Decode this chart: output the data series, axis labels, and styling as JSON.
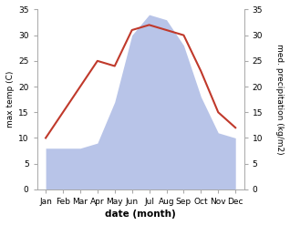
{
  "months": [
    "Jan",
    "Feb",
    "Mar",
    "Apr",
    "May",
    "Jun",
    "Jul",
    "Aug",
    "Sep",
    "Oct",
    "Nov",
    "Dec"
  ],
  "temperature": [
    10,
    15,
    20,
    25,
    24,
    31,
    32,
    31,
    30,
    23,
    15,
    12
  ],
  "precipitation": [
    8,
    8,
    8,
    9,
    17,
    30,
    34,
    33,
    28,
    18,
    11,
    10
  ],
  "temp_color": "#c0392b",
  "precip_color": "#b8c4e8",
  "ylim_left": [
    0,
    35
  ],
  "ylim_right": [
    0,
    35
  ],
  "yticks": [
    0,
    5,
    10,
    15,
    20,
    25,
    30,
    35
  ],
  "ylabel_left": "max temp (C)",
  "ylabel_right": "med. precipitation (kg/m2)",
  "xlabel": "date (month)",
  "bg_color": "#ffffff",
  "spine_color": "#aaaaaa",
  "tick_color": "#555555"
}
